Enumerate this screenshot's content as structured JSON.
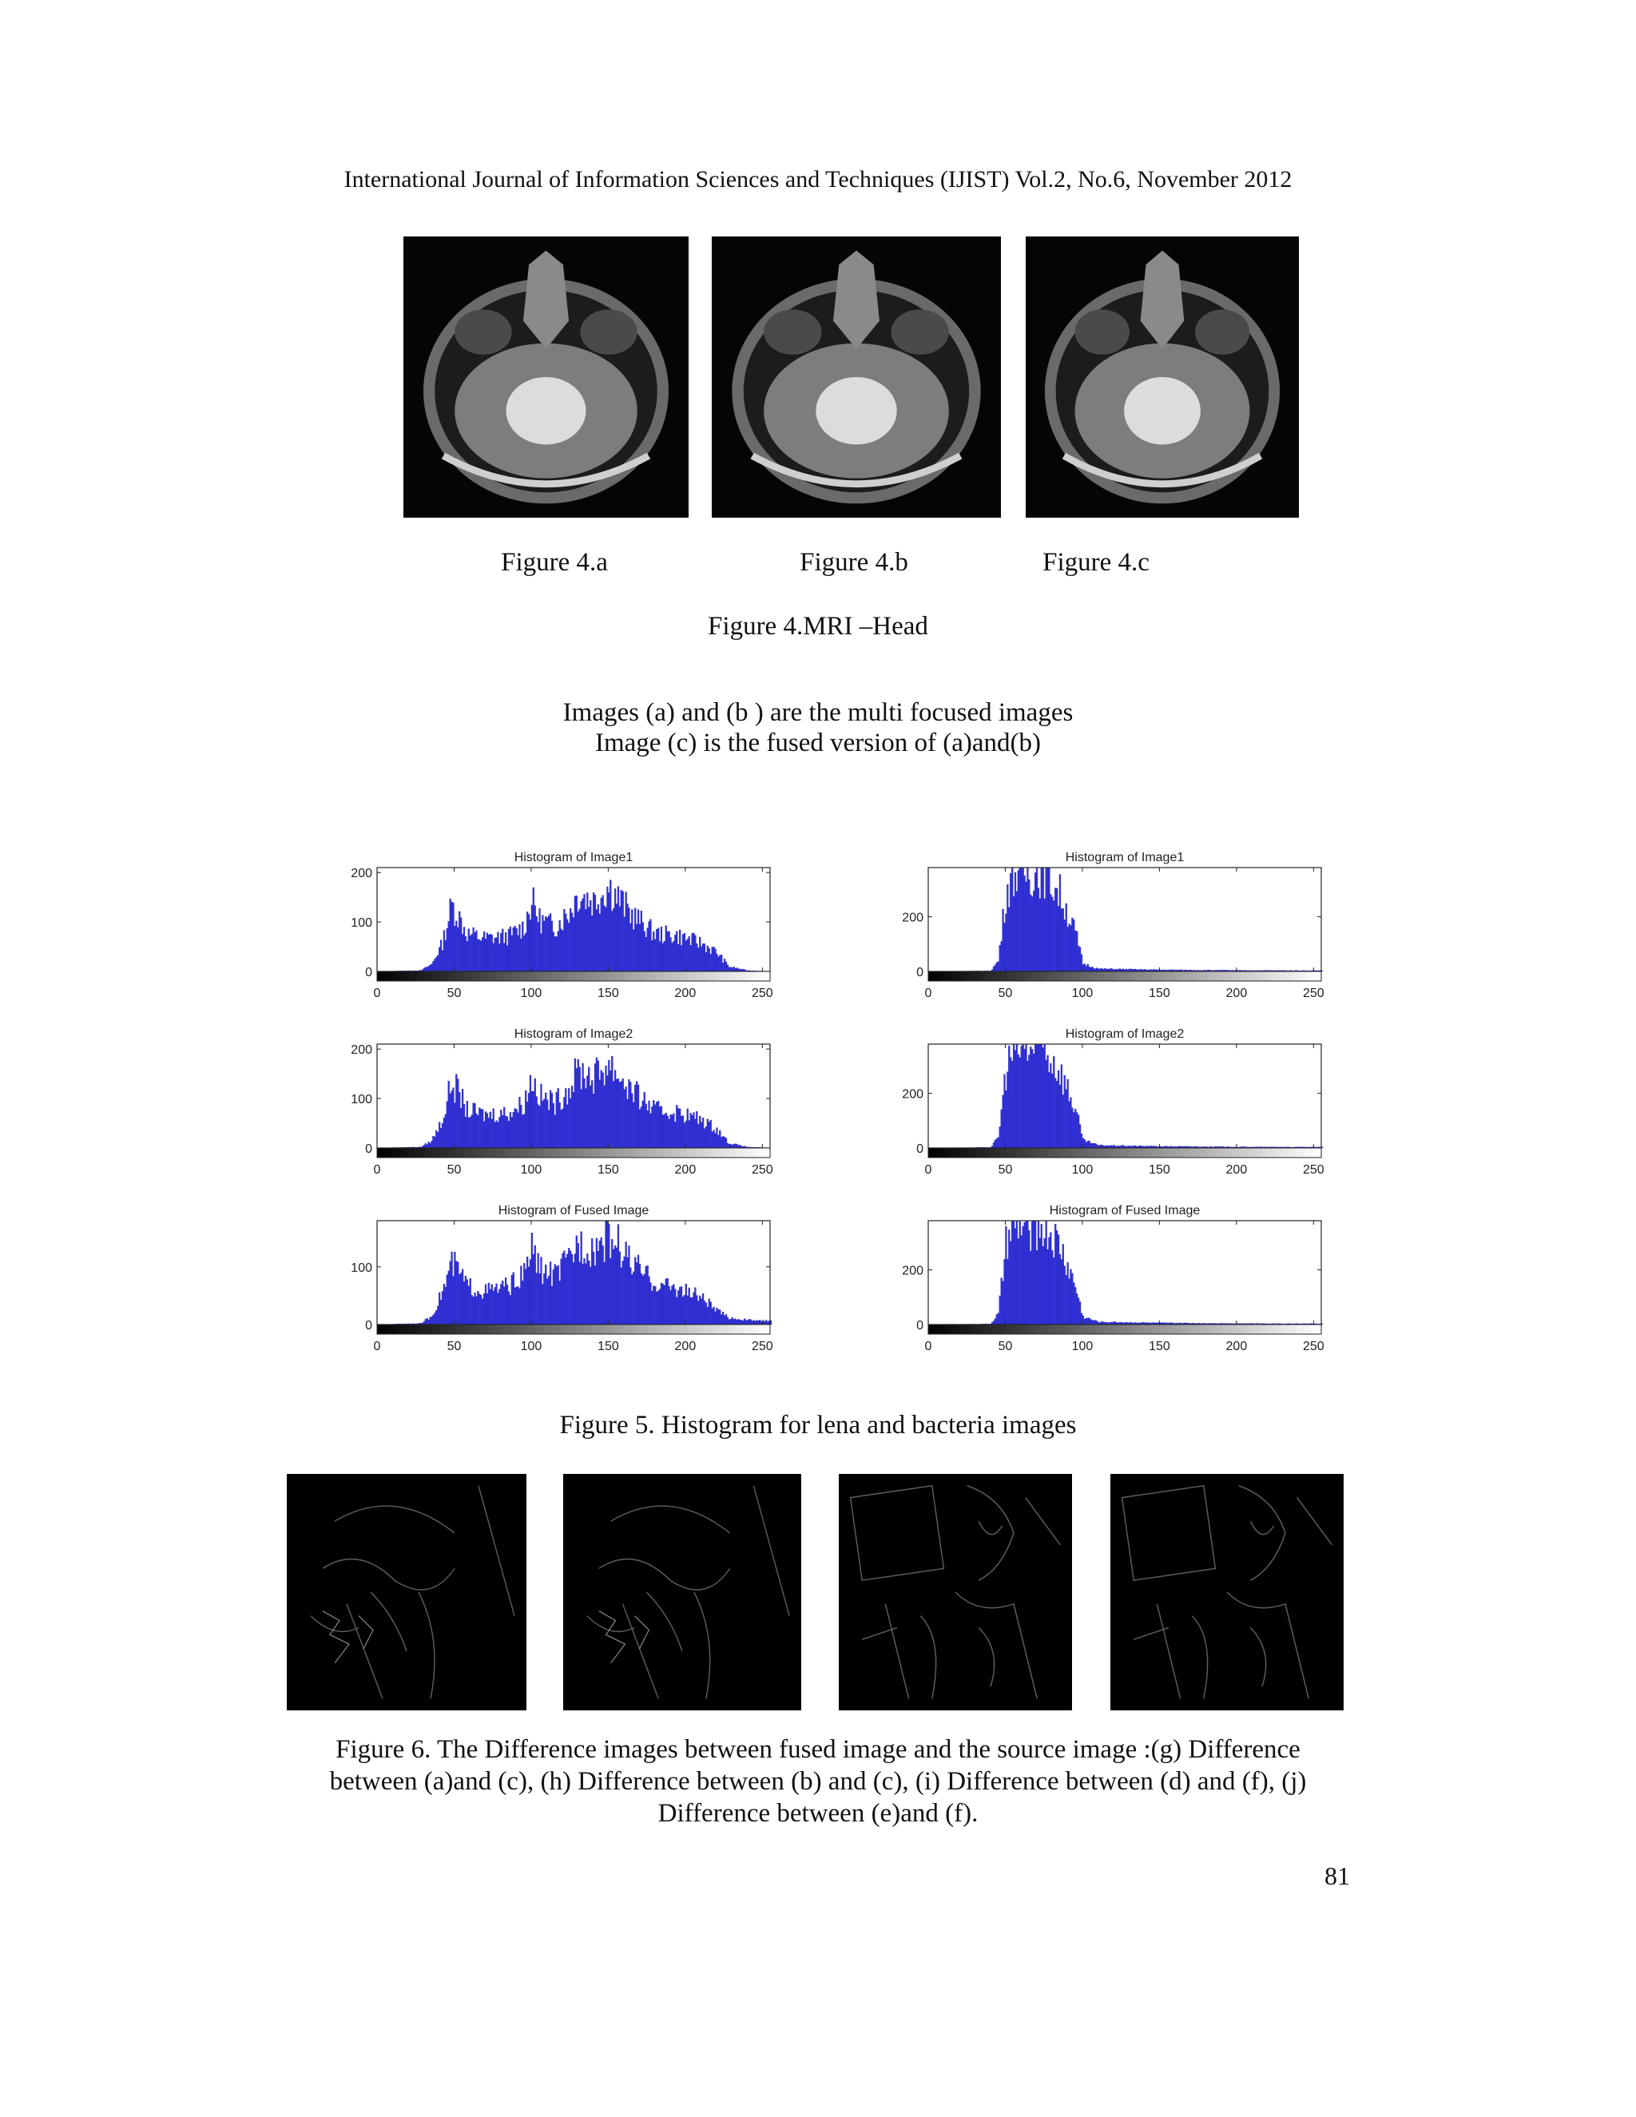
{
  "header": "International Journal of Information Sciences and Techniques (IJIST) Vol.2, No.6, November 2012",
  "figure4": {
    "labels": [
      "Figure 4.a",
      "Figure 4.b",
      "Figure 4.c"
    ],
    "caption": "Figure 4.MRI –Head",
    "note_line1": "Images (a) and (b ) are the multi focused images",
    "note_line2": "Image (c) is the fused version of (a)and(b)"
  },
  "figure5": {
    "caption": "Figure 5. Histogram for lena and bacteria images"
  },
  "figure6": {
    "caption_line1": "Figure 6. The Difference images between fused image and the source image :(g) Difference",
    "caption_line2": "between (a)and (c), (h) Difference between (b) and (c), (i) Difference between (d) and (f), (j)",
    "caption_line3": "Difference between (e)and (f)."
  },
  "page_number": "81",
  "colors": {
    "bar": "#3333dd",
    "bar_edge": "#1a1aa8"
  },
  "chart_data": [
    {
      "type": "bar",
      "title": "Histogram of Image1",
      "xlim": [
        0,
        255
      ],
      "ylim": [
        0,
        210
      ],
      "xticks": [
        "0",
        "50",
        "100",
        "150",
        "200",
        "250"
      ],
      "yticks": [
        "0",
        "100",
        "200"
      ],
      "profile": [
        [
          0,
          0
        ],
        [
          28,
          2
        ],
        [
          35,
          15
        ],
        [
          42,
          60
        ],
        [
          48,
          140
        ],
        [
          52,
          120
        ],
        [
          58,
          80
        ],
        [
          70,
          70
        ],
        [
          85,
          75
        ],
        [
          95,
          95
        ],
        [
          100,
          150
        ],
        [
          105,
          110
        ],
        [
          115,
          95
        ],
        [
          125,
          130
        ],
        [
          130,
          165
        ],
        [
          140,
          150
        ],
        [
          150,
          180
        ],
        [
          155,
          160
        ],
        [
          165,
          120
        ],
        [
          180,
          80
        ],
        [
          195,
          75
        ],
        [
          210,
          60
        ],
        [
          220,
          40
        ],
        [
          228,
          10
        ],
        [
          240,
          2
        ],
        [
          255,
          0
        ]
      ]
    },
    {
      "type": "bar",
      "title": "Histogram of Image1",
      "xlim": [
        0,
        255
      ],
      "ylim": [
        0,
        380
      ],
      "xticks": [
        "0",
        "50",
        "100",
        "150",
        "200",
        "250"
      ],
      "yticks": [
        "0",
        "200"
      ],
      "profile": [
        [
          0,
          0
        ],
        [
          40,
          2
        ],
        [
          45,
          40
        ],
        [
          50,
          300
        ],
        [
          55,
          380
        ],
        [
          65,
          380
        ],
        [
          75,
          380
        ],
        [
          85,
          300
        ],
        [
          95,
          150
        ],
        [
          100,
          30
        ],
        [
          110,
          10
        ],
        [
          150,
          6
        ],
        [
          200,
          4
        ],
        [
          255,
          3
        ]
      ]
    },
    {
      "type": "bar",
      "title": "Histogram of Image2",
      "xlim": [
        0,
        255
      ],
      "ylim": [
        0,
        210
      ],
      "xticks": [
        "0",
        "50",
        "100",
        "150",
        "200",
        "250"
      ],
      "yticks": [
        "0",
        "100",
        "200"
      ],
      "profile": [
        [
          0,
          0
        ],
        [
          28,
          2
        ],
        [
          35,
          15
        ],
        [
          42,
          60
        ],
        [
          48,
          140
        ],
        [
          52,
          120
        ],
        [
          58,
          80
        ],
        [
          70,
          70
        ],
        [
          85,
          75
        ],
        [
          95,
          95
        ],
        [
          100,
          150
        ],
        [
          105,
          110
        ],
        [
          115,
          95
        ],
        [
          125,
          130
        ],
        [
          130,
          165
        ],
        [
          140,
          150
        ],
        [
          150,
          180
        ],
        [
          155,
          160
        ],
        [
          165,
          120
        ],
        [
          180,
          80
        ],
        [
          195,
          75
        ],
        [
          210,
          60
        ],
        [
          220,
          40
        ],
        [
          228,
          10
        ],
        [
          240,
          2
        ],
        [
          255,
          0
        ]
      ]
    },
    {
      "type": "bar",
      "title": "Histogram of Image2",
      "xlim": [
        0,
        255
      ],
      "ylim": [
        0,
        380
      ],
      "xticks": [
        "0",
        "50",
        "100",
        "150",
        "200",
        "250"
      ],
      "yticks": [
        "0",
        "200"
      ],
      "profile": [
        [
          0,
          0
        ],
        [
          40,
          2
        ],
        [
          45,
          40
        ],
        [
          50,
          300
        ],
        [
          55,
          380
        ],
        [
          65,
          380
        ],
        [
          75,
          380
        ],
        [
          85,
          300
        ],
        [
          95,
          150
        ],
        [
          100,
          30
        ],
        [
          110,
          10
        ],
        [
          150,
          6
        ],
        [
          200,
          4
        ],
        [
          255,
          3
        ]
      ]
    },
    {
      "type": "bar",
      "title": "Histogram of Fused Image",
      "xlim": [
        0,
        255
      ],
      "ylim": [
        0,
        180
      ],
      "xticks": [
        "0",
        "50",
        "100",
        "150",
        "200",
        "250"
      ],
      "yticks": [
        "0",
        "100"
      ],
      "profile": [
        [
          0,
          0
        ],
        [
          28,
          2
        ],
        [
          35,
          15
        ],
        [
          42,
          60
        ],
        [
          48,
          110
        ],
        [
          52,
          100
        ],
        [
          58,
          70
        ],
        [
          70,
          60
        ],
        [
          85,
          70
        ],
        [
          95,
          90
        ],
        [
          100,
          140
        ],
        [
          105,
          100
        ],
        [
          115,
          90
        ],
        [
          125,
          120
        ],
        [
          130,
          150
        ],
        [
          140,
          140
        ],
        [
          150,
          160
        ],
        [
          155,
          150
        ],
        [
          165,
          110
        ],
        [
          180,
          75
        ],
        [
          195,
          65
        ],
        [
          210,
          50
        ],
        [
          220,
          25
        ],
        [
          228,
          12
        ],
        [
          240,
          8
        ],
        [
          255,
          6
        ]
      ]
    },
    {
      "type": "bar",
      "title": "Histogram of Fused Image",
      "xlim": [
        0,
        255
      ],
      "ylim": [
        0,
        380
      ],
      "xticks": [
        "0",
        "50",
        "100",
        "150",
        "200",
        "250"
      ],
      "yticks": [
        "0",
        "200"
      ],
      "profile": [
        [
          0,
          0
        ],
        [
          40,
          2
        ],
        [
          45,
          40
        ],
        [
          50,
          300
        ],
        [
          55,
          380
        ],
        [
          65,
          380
        ],
        [
          75,
          380
        ],
        [
          85,
          300
        ],
        [
          95,
          150
        ],
        [
          100,
          30
        ],
        [
          110,
          10
        ],
        [
          150,
          6
        ],
        [
          200,
          4
        ],
        [
          255,
          3
        ]
      ]
    }
  ]
}
